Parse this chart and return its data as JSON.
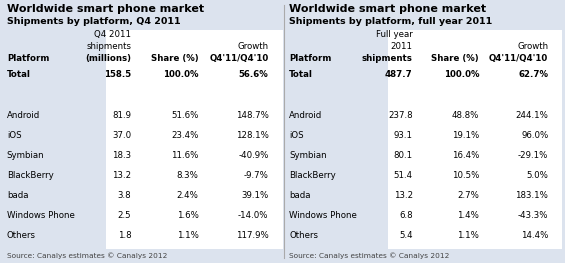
{
  "left_table": {
    "title1": "Worldwide smart phone market",
    "title2": "Shipments by platform, Q4 2011",
    "header_line1": [
      "",
      "Q4 2011",
      "",
      ""
    ],
    "header_line2": [
      "",
      "shipments",
      "",
      "Growth"
    ],
    "header_line3": [
      "Platform",
      "(millions)",
      "Share (%)",
      "Q4'11/Q4'10"
    ],
    "rows": [
      [
        "Total",
        "158.5",
        "100.0%",
        "56.6%"
      ],
      [
        "",
        "",
        "",
        ""
      ],
      [
        "Android",
        "81.9",
        "51.6%",
        "148.7%"
      ],
      [
        "iOS",
        "37.0",
        "23.4%",
        "128.1%"
      ],
      [
        "Symbian",
        "18.3",
        "11.6%",
        "-40.9%"
      ],
      [
        "BlackBerry",
        "13.2",
        "8.3%",
        "-9.7%"
      ],
      [
        "bada",
        "3.8",
        "2.4%",
        "39.1%"
      ],
      [
        "Windows Phone",
        "2.5",
        "1.6%",
        "-14.0%"
      ],
      [
        "Others",
        "1.8",
        "1.1%",
        "117.9%"
      ]
    ],
    "source": "Source: Canalys estimates © Canalys 2012"
  },
  "right_table": {
    "title1": "Worldwide smart phone market",
    "title2": "Shipments by platform, full year 2011",
    "header_line1": [
      "",
      "Full year",
      "",
      ""
    ],
    "header_line2": [
      "",
      "2011",
      "",
      "Growth"
    ],
    "header_line3": [
      "Platform",
      "shipments",
      "Share (%)",
      "Q4'11/Q4'10"
    ],
    "rows": [
      [
        "Total",
        "487.7",
        "100.0%",
        "62.7%"
      ],
      [
        "",
        "",
        "",
        ""
      ],
      [
        "Android",
        "237.8",
        "48.8%",
        "244.1%"
      ],
      [
        "iOS",
        "93.1",
        "19.1%",
        "96.0%"
      ],
      [
        "Symbian",
        "80.1",
        "16.4%",
        "-29.1%"
      ],
      [
        "BlackBerry",
        "51.4",
        "10.5%",
        "5.0%"
      ],
      [
        "bada",
        "13.2",
        "2.7%",
        "183.1%"
      ],
      [
        "Windows Phone",
        "6.8",
        "1.4%",
        "-43.3%"
      ],
      [
        "Others",
        "5.4",
        "1.1%",
        "14.4%"
      ]
    ],
    "source": "Source: Canalys estimates © Canalys 2012"
  },
  "bg_color": "#dce3ee",
  "col0_bg": "#d0d9e8",
  "data_bg": "#ffffff",
  "title_color": "#000000",
  "text_color": "#000000",
  "source_color": "#444444",
  "divider_color": "#aaaaaa"
}
